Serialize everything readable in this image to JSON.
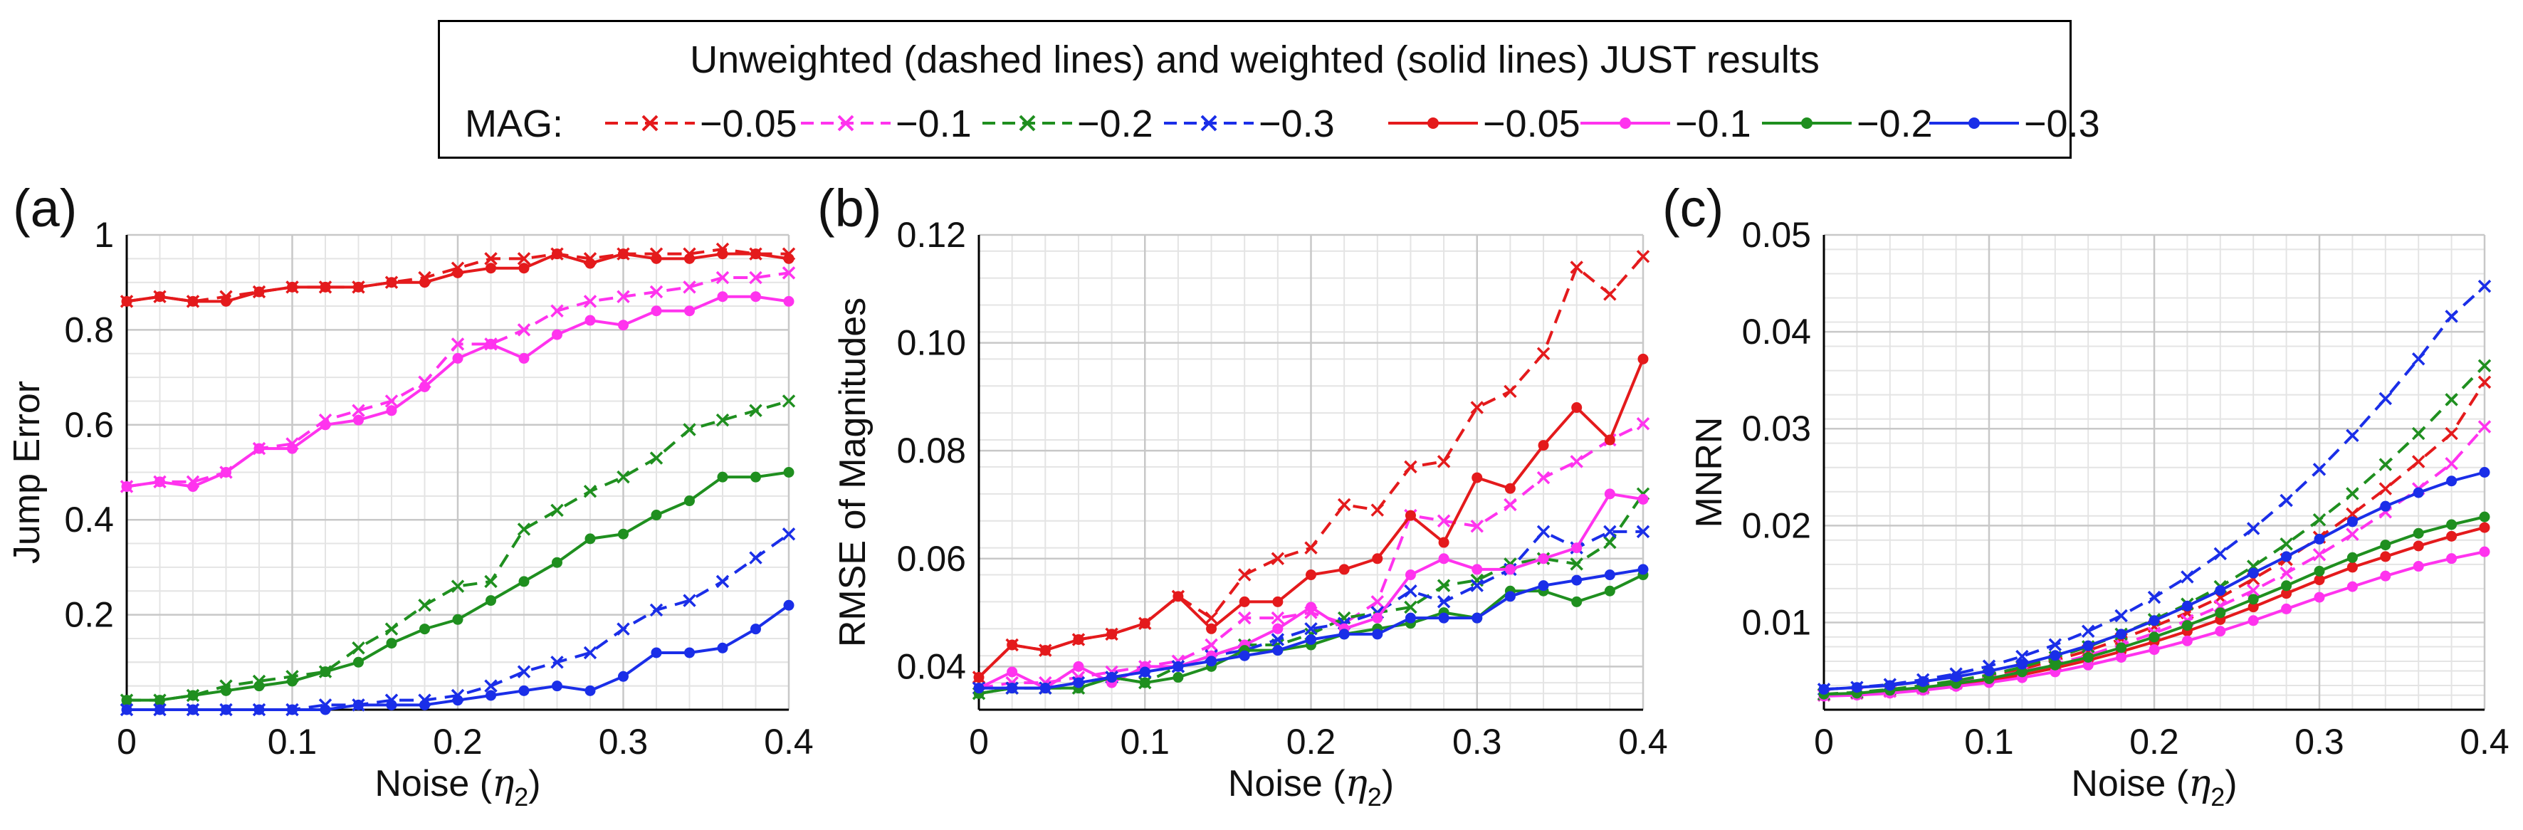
{
  "legend": {
    "title": "Unweighted (dashed lines) and weighted (solid lines) JUST results",
    "mag_label": "MAG:",
    "dashed": [
      "−0.05",
      "−0.1",
      "−0.2",
      "−0.3"
    ],
    "solid": [
      "−0.05",
      "−0.1",
      "−0.2",
      "−0.3"
    ],
    "colors": [
      "#e41a1c",
      "#ff33ee",
      "#1f8f1f",
      "#1a2ee8"
    ]
  },
  "chart_data": [
    {
      "type": "line",
      "panel_label": "(a)",
      "xlabel": "Noise",
      "xlabel_symbol": "η",
      "xlabel_sub": "2",
      "ylabel": "Jump Error",
      "xlim": [
        0,
        0.4
      ],
      "ylim": [
        0,
        1.0
      ],
      "xticks": [
        0,
        0.1,
        0.2,
        0.3,
        0.4
      ],
      "xtick_labels": [
        "0",
        "0.1",
        "0.2",
        "0.3",
        "0.4"
      ],
      "yticks": [
        0.2,
        0.4,
        0.6,
        0.8,
        1.0
      ],
      "ytick_labels": [
        "0.2",
        "0.4",
        "0.6",
        "0.8",
        "1"
      ],
      "x": [
        0,
        0.02,
        0.04,
        0.06,
        0.08,
        0.1,
        0.12,
        0.14,
        0.16,
        0.18,
        0.2,
        0.22,
        0.24,
        0.26,
        0.28,
        0.3,
        0.32,
        0.34,
        0.36,
        0.38,
        0.4
      ],
      "series": [
        {
          "name": "−0.05 unweighted",
          "style": "dashed",
          "color_index": 0,
          "values": [
            0.86,
            0.87,
            0.86,
            0.87,
            0.88,
            0.89,
            0.89,
            0.89,
            0.9,
            0.91,
            0.93,
            0.95,
            0.95,
            0.96,
            0.95,
            0.96,
            0.96,
            0.96,
            0.97,
            0.96,
            0.96
          ]
        },
        {
          "name": "−0.1 unweighted",
          "style": "dashed",
          "color_index": 1,
          "values": [
            0.47,
            0.48,
            0.48,
            0.5,
            0.55,
            0.56,
            0.61,
            0.63,
            0.65,
            0.69,
            0.77,
            0.77,
            0.8,
            0.84,
            0.86,
            0.87,
            0.88,
            0.89,
            0.91,
            0.91,
            0.92
          ]
        },
        {
          "name": "−0.2 unweighted",
          "style": "dashed",
          "color_index": 2,
          "values": [
            0.02,
            0.02,
            0.03,
            0.05,
            0.06,
            0.07,
            0.08,
            0.13,
            0.17,
            0.22,
            0.26,
            0.27,
            0.38,
            0.42,
            0.46,
            0.49,
            0.53,
            0.59,
            0.61,
            0.63,
            0.65
          ]
        },
        {
          "name": "−0.3 unweighted",
          "style": "dashed",
          "color_index": 3,
          "values": [
            0.0,
            0.0,
            0.0,
            0.0,
            0.0,
            0.0,
            0.01,
            0.01,
            0.02,
            0.02,
            0.03,
            0.05,
            0.08,
            0.1,
            0.12,
            0.17,
            0.21,
            0.23,
            0.27,
            0.32,
            0.37
          ]
        },
        {
          "name": "−0.05 weighted",
          "style": "solid",
          "color_index": 0,
          "values": [
            0.86,
            0.87,
            0.86,
            0.86,
            0.88,
            0.89,
            0.89,
            0.89,
            0.9,
            0.9,
            0.92,
            0.93,
            0.93,
            0.96,
            0.94,
            0.96,
            0.95,
            0.95,
            0.96,
            0.96,
            0.95
          ]
        },
        {
          "name": "−0.1 weighted",
          "style": "solid",
          "color_index": 1,
          "values": [
            0.47,
            0.48,
            0.47,
            0.5,
            0.55,
            0.55,
            0.6,
            0.61,
            0.63,
            0.68,
            0.74,
            0.77,
            0.74,
            0.79,
            0.82,
            0.81,
            0.84,
            0.84,
            0.87,
            0.87,
            0.86
          ]
        },
        {
          "name": "−0.2 weighted",
          "style": "solid",
          "color_index": 2,
          "values": [
            0.02,
            0.02,
            0.03,
            0.04,
            0.05,
            0.06,
            0.08,
            0.1,
            0.14,
            0.17,
            0.19,
            0.23,
            0.27,
            0.31,
            0.36,
            0.37,
            0.41,
            0.44,
            0.49,
            0.49,
            0.5
          ]
        },
        {
          "name": "−0.3 weighted",
          "style": "solid",
          "color_index": 3,
          "values": [
            0.0,
            0.0,
            0.0,
            0.0,
            0.0,
            0.0,
            0.0,
            0.01,
            0.01,
            0.01,
            0.02,
            0.03,
            0.04,
            0.05,
            0.04,
            0.07,
            0.12,
            0.12,
            0.13,
            0.17,
            0.22
          ]
        }
      ]
    },
    {
      "type": "line",
      "panel_label": "(b)",
      "xlabel": "Noise",
      "xlabel_symbol": "η",
      "xlabel_sub": "2",
      "ylabel": "RMSE of Magnitudes",
      "xlim": [
        0,
        0.4
      ],
      "ylim": [
        0.032,
        0.12
      ],
      "xticks": [
        0,
        0.1,
        0.2,
        0.3,
        0.4
      ],
      "xtick_labels": [
        "0",
        "0.1",
        "0.2",
        "0.3",
        "0.4"
      ],
      "yticks": [
        0.04,
        0.06,
        0.08,
        0.1,
        0.12
      ],
      "ytick_labels": [
        "0.04",
        "0.06",
        "0.08",
        "0.10",
        "0.12"
      ],
      "x": [
        0,
        0.02,
        0.04,
        0.06,
        0.08,
        0.1,
        0.12,
        0.14,
        0.16,
        0.18,
        0.2,
        0.22,
        0.24,
        0.26,
        0.28,
        0.3,
        0.32,
        0.34,
        0.36,
        0.38,
        0.4
      ],
      "series": [
        {
          "name": "−0.05 unweighted",
          "style": "dashed",
          "color_index": 0,
          "values": [
            0.038,
            0.044,
            0.043,
            0.045,
            0.046,
            0.048,
            0.053,
            0.049,
            0.057,
            0.06,
            0.062,
            0.07,
            0.069,
            0.077,
            0.078,
            0.088,
            0.091,
            0.098,
            0.114,
            0.109,
            0.116
          ]
        },
        {
          "name": "−0.1 unweighted",
          "style": "dashed",
          "color_index": 1,
          "values": [
            0.036,
            0.037,
            0.037,
            0.038,
            0.039,
            0.04,
            0.041,
            0.044,
            0.049,
            0.049,
            0.05,
            0.048,
            0.052,
            0.068,
            0.067,
            0.066,
            0.07,
            0.075,
            0.078,
            0.082,
            0.085
          ]
        },
        {
          "name": "−0.2 unweighted",
          "style": "dashed",
          "color_index": 2,
          "values": [
            0.035,
            0.036,
            0.036,
            0.036,
            0.038,
            0.037,
            0.04,
            0.042,
            0.044,
            0.044,
            0.046,
            0.049,
            0.05,
            0.051,
            0.055,
            0.056,
            0.059,
            0.06,
            0.059,
            0.063,
            0.072
          ]
        },
        {
          "name": "−0.3 unweighted",
          "style": "dashed",
          "color_index": 3,
          "values": [
            0.036,
            0.036,
            0.036,
            0.037,
            0.038,
            0.039,
            0.04,
            0.042,
            0.043,
            0.045,
            0.047,
            0.048,
            0.05,
            0.054,
            0.052,
            0.055,
            0.058,
            0.065,
            0.062,
            0.065,
            0.065
          ]
        },
        {
          "name": "−0.05 weighted",
          "style": "solid",
          "color_index": 0,
          "values": [
            0.038,
            0.044,
            0.043,
            0.045,
            0.046,
            0.048,
            0.053,
            0.047,
            0.052,
            0.052,
            0.057,
            0.058,
            0.06,
            0.068,
            0.063,
            0.075,
            0.073,
            0.081,
            0.088,
            0.082,
            0.097
          ]
        },
        {
          "name": "−0.1 weighted",
          "style": "solid",
          "color_index": 1,
          "values": [
            0.036,
            0.039,
            0.036,
            0.04,
            0.037,
            0.04,
            0.04,
            0.042,
            0.044,
            0.047,
            0.051,
            0.047,
            0.049,
            0.057,
            0.06,
            0.058,
            0.058,
            0.06,
            0.062,
            0.072,
            0.071
          ]
        },
        {
          "name": "−0.2 weighted",
          "style": "solid",
          "color_index": 2,
          "values": [
            0.035,
            0.036,
            0.036,
            0.036,
            0.038,
            0.037,
            0.038,
            0.04,
            0.043,
            0.043,
            0.044,
            0.046,
            0.047,
            0.048,
            0.05,
            0.049,
            0.054,
            0.054,
            0.052,
            0.054,
            0.057
          ]
        },
        {
          "name": "−0.3 weighted",
          "style": "solid",
          "color_index": 3,
          "values": [
            0.036,
            0.036,
            0.036,
            0.037,
            0.038,
            0.039,
            0.04,
            0.041,
            0.042,
            0.043,
            0.045,
            0.046,
            0.046,
            0.049,
            0.049,
            0.049,
            0.053,
            0.055,
            0.056,
            0.057,
            0.058
          ]
        }
      ]
    },
    {
      "type": "line",
      "panel_label": "(c)",
      "xlabel": "Noise",
      "xlabel_symbol": "η",
      "xlabel_sub": "2",
      "ylabel": "MNRN",
      "xlim": [
        0,
        0.4
      ],
      "ylim": [
        0.001,
        0.05
      ],
      "xticks": [
        0,
        0.1,
        0.2,
        0.3,
        0.4
      ],
      "xtick_labels": [
        "0",
        "0.1",
        "0.2",
        "0.3",
        "0.4"
      ],
      "yticks": [
        0.01,
        0.02,
        0.03,
        0.04,
        0.05
      ],
      "ytick_labels": [
        "0.01",
        "0.02",
        "0.03",
        "0.04",
        "0.05"
      ],
      "x": [
        0,
        0.02,
        0.04,
        0.06,
        0.08,
        0.1,
        0.12,
        0.14,
        0.16,
        0.18,
        0.2,
        0.22,
        0.24,
        0.26,
        0.28,
        0.3,
        0.32,
        0.34,
        0.36,
        0.38,
        0.4
      ],
      "series": [
        {
          "name": "−0.05 unweighted",
          "style": "dashed",
          "color_index": 0,
          "values": [
            0.0025,
            0.0027,
            0.0029,
            0.0033,
            0.0038,
            0.0044,
            0.0052,
            0.0061,
            0.0071,
            0.0083,
            0.0096,
            0.011,
            0.0126,
            0.0145,
            0.0165,
            0.0188,
            0.0212,
            0.0238,
            0.0266,
            0.0295,
            0.0348
          ]
        },
        {
          "name": "−0.1 unweighted",
          "style": "dashed",
          "color_index": 1,
          "values": [
            0.0025,
            0.0027,
            0.0029,
            0.0032,
            0.0037,
            0.0043,
            0.0049,
            0.0057,
            0.0066,
            0.0077,
            0.0089,
            0.0102,
            0.0117,
            0.0133,
            0.0151,
            0.017,
            0.0191,
            0.0214,
            0.0238,
            0.0264,
            0.0302
          ]
        },
        {
          "name": "−0.2 unweighted",
          "style": "dashed",
          "color_index": 2,
          "values": [
            0.0026,
            0.0028,
            0.0031,
            0.0035,
            0.004,
            0.0046,
            0.0054,
            0.0064,
            0.0075,
            0.0088,
            0.0103,
            0.0119,
            0.0137,
            0.0158,
            0.0181,
            0.0206,
            0.0233,
            0.0263,
            0.0295,
            0.033,
            0.0365
          ]
        },
        {
          "name": "−0.3 unweighted",
          "style": "dashed",
          "color_index": 3,
          "values": [
            0.0031,
            0.0033,
            0.0036,
            0.0041,
            0.0047,
            0.0055,
            0.0065,
            0.0077,
            0.0091,
            0.0107,
            0.0126,
            0.0147,
            0.0171,
            0.0197,
            0.0226,
            0.0258,
            0.0293,
            0.0331,
            0.0372,
            0.0416,
            0.0447
          ]
        },
        {
          "name": "−0.05 weighted",
          "style": "solid",
          "color_index": 0,
          "values": [
            0.0025,
            0.0026,
            0.0028,
            0.0031,
            0.0035,
            0.004,
            0.0046,
            0.0053,
            0.0061,
            0.007,
            0.008,
            0.0091,
            0.0103,
            0.0116,
            0.013,
            0.0144,
            0.0157,
            0.0168,
            0.0179,
            0.0189,
            0.0198
          ]
        },
        {
          "name": "−0.1 weighted",
          "style": "solid",
          "color_index": 1,
          "values": [
            0.0024,
            0.0025,
            0.0027,
            0.003,
            0.0034,
            0.0038,
            0.0043,
            0.0049,
            0.0056,
            0.0064,
            0.0072,
            0.0081,
            0.0091,
            0.0102,
            0.0114,
            0.0126,
            0.0137,
            0.0148,
            0.0158,
            0.0166,
            0.0173
          ]
        },
        {
          "name": "−0.2 weighted",
          "style": "solid",
          "color_index": 2,
          "values": [
            0.0026,
            0.0027,
            0.003,
            0.0033,
            0.0037,
            0.0042,
            0.0049,
            0.0056,
            0.0064,
            0.0074,
            0.0085,
            0.0097,
            0.011,
            0.0124,
            0.0138,
            0.0153,
            0.0167,
            0.018,
            0.0192,
            0.0201,
            0.0209
          ]
        },
        {
          "name": "−0.3 weighted",
          "style": "solid",
          "color_index": 3,
          "values": [
            0.0031,
            0.0033,
            0.0035,
            0.0039,
            0.0044,
            0.005,
            0.0057,
            0.0066,
            0.0076,
            0.0088,
            0.0102,
            0.0117,
            0.0133,
            0.0151,
            0.0168,
            0.0186,
            0.0204,
            0.022,
            0.0234,
            0.0246,
            0.0255
          ]
        }
      ]
    }
  ]
}
